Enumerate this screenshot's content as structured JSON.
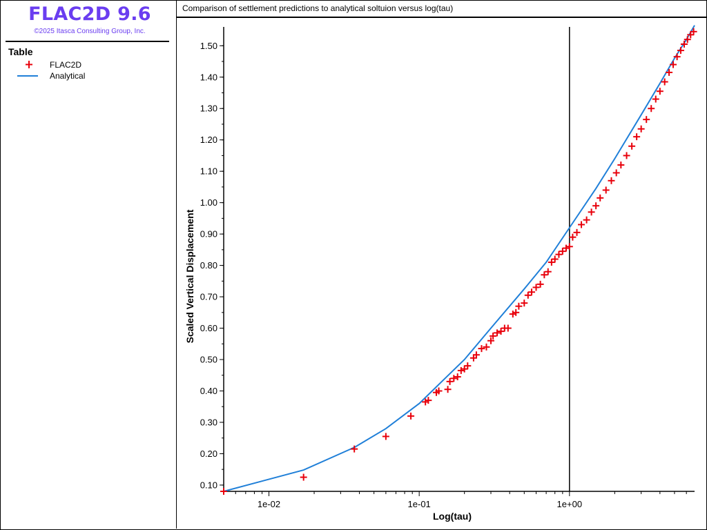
{
  "app": {
    "name": "FLAC2D 9.6",
    "copyright": "©2025 Itasca Consulting Group, Inc."
  },
  "legend": {
    "title": "Table",
    "items": [
      {
        "label": "FLAC2D",
        "marker": "plus",
        "color": "#e8000b"
      },
      {
        "label": "Analytical",
        "marker": "line",
        "color": "#1f7fd8"
      }
    ]
  },
  "chart_data": {
    "type": "scatter",
    "title": "Comparison of settlement predictions to analytical soltuion versus log(tau)",
    "xlabel": "Log(tau)",
    "ylabel": "Scaled Vertical Displacement",
    "xscale": "log",
    "xlim": [
      0.005,
      6.8
    ],
    "ylim": [
      0.08,
      1.56
    ],
    "xticks": [
      "1e-02",
      "1e-01",
      "1e+00"
    ],
    "yticks": [
      "0.10",
      "0.20",
      "0.30",
      "0.40",
      "0.50",
      "0.60",
      "0.70",
      "0.80",
      "0.90",
      "1.00",
      "1.10",
      "1.20",
      "1.30",
      "1.40",
      "1.50"
    ],
    "reference_line_x": 1.0,
    "grid": false,
    "series": [
      {
        "name": "FLAC2D",
        "marker": "plus",
        "color": "#e8000b",
        "x": [
          0.005,
          0.017,
          0.037,
          0.06,
          0.088,
          0.11,
          0.115,
          0.13,
          0.135,
          0.155,
          0.16,
          0.17,
          0.18,
          0.19,
          0.2,
          0.21,
          0.23,
          0.24,
          0.26,
          0.28,
          0.3,
          0.31,
          0.33,
          0.35,
          0.37,
          0.39,
          0.42,
          0.44,
          0.46,
          0.5,
          0.53,
          0.56,
          0.6,
          0.64,
          0.68,
          0.72,
          0.76,
          0.8,
          0.85,
          0.9,
          0.95,
          1.0,
          1.05,
          1.12,
          1.2,
          1.3,
          1.4,
          1.5,
          1.6,
          1.75,
          1.9,
          2.05,
          2.2,
          2.4,
          2.6,
          2.8,
          3.0,
          3.25,
          3.5,
          3.75,
          4.0,
          4.3,
          4.6,
          4.9,
          5.2,
          5.5,
          5.8,
          6.1,
          6.4,
          6.7
        ],
        "y": [
          0.08,
          0.125,
          0.215,
          0.255,
          0.32,
          0.365,
          0.37,
          0.395,
          0.4,
          0.405,
          0.43,
          0.44,
          0.445,
          0.465,
          0.47,
          0.48,
          0.505,
          0.515,
          0.535,
          0.54,
          0.56,
          0.575,
          0.585,
          0.59,
          0.6,
          0.6,
          0.645,
          0.65,
          0.67,
          0.68,
          0.705,
          0.715,
          0.73,
          0.74,
          0.77,
          0.78,
          0.81,
          0.82,
          0.835,
          0.845,
          0.855,
          0.86,
          0.89,
          0.905,
          0.93,
          0.945,
          0.97,
          0.99,
          1.015,
          1.04,
          1.07,
          1.095,
          1.12,
          1.15,
          1.18,
          1.21,
          1.235,
          1.265,
          1.3,
          1.33,
          1.355,
          1.385,
          1.415,
          1.44,
          1.465,
          1.485,
          1.505,
          1.52,
          1.535,
          1.545
        ]
      },
      {
        "name": "Analytical",
        "marker": "line",
        "color": "#1f7fd8",
        "x": [
          0.005,
          0.017,
          0.037,
          0.06,
          0.1,
          0.2,
          0.3,
          0.5,
          0.7,
          1.0,
          1.5,
          2.0,
          3.0,
          4.0,
          5.0,
          6.0,
          6.8
        ],
        "y": [
          0.08,
          0.148,
          0.22,
          0.28,
          0.36,
          0.5,
          0.6,
          0.725,
          0.81,
          0.92,
          1.045,
          1.14,
          1.28,
          1.38,
          1.46,
          1.52,
          1.565
        ]
      }
    ]
  }
}
